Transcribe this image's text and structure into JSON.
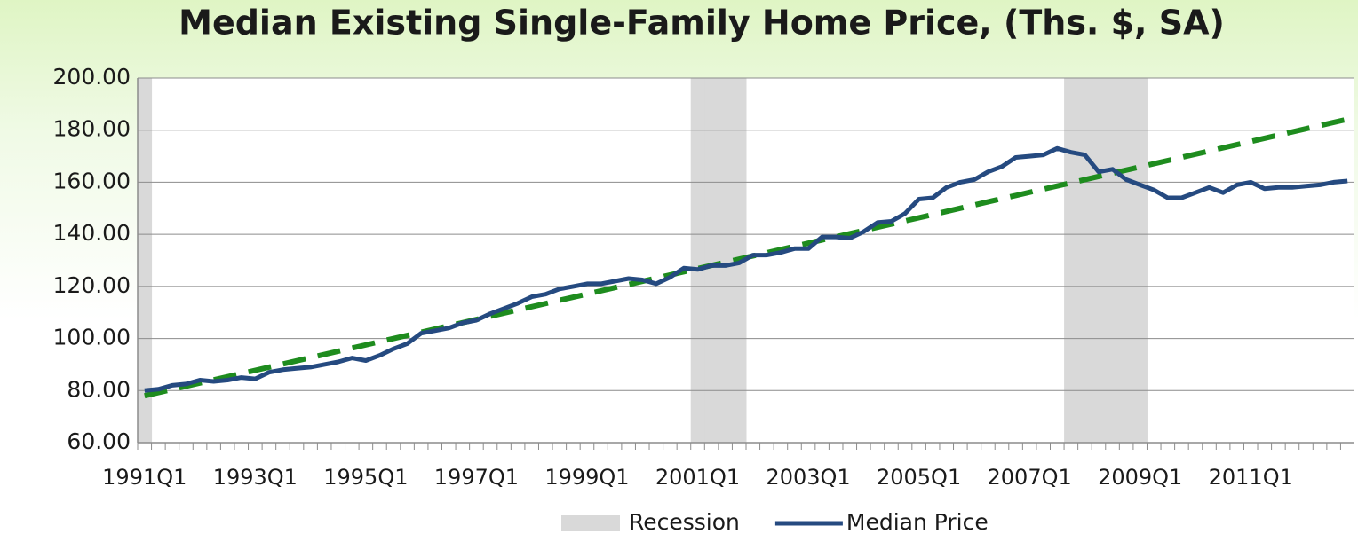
{
  "chart_data": {
    "type": "line",
    "title": "Median Existing Single-Family Home Price, (Ths. $, SA)",
    "categories": [
      "1991Q1",
      null,
      null,
      null,
      null,
      null,
      null,
      null,
      "1993Q1",
      null,
      null,
      null,
      null,
      null,
      null,
      null,
      "1995Q1",
      null,
      null,
      null,
      null,
      null,
      null,
      null,
      "1997Q1",
      null,
      null,
      null,
      null,
      null,
      null,
      null,
      "1999Q1",
      null,
      null,
      null,
      null,
      null,
      null,
      null,
      "2001Q1",
      null,
      null,
      null,
      null,
      null,
      null,
      null,
      "2003Q1",
      null,
      null,
      null,
      null,
      null,
      null,
      null,
      "2005Q1",
      null,
      null,
      null,
      null,
      null,
      null,
      null,
      "2007Q1",
      null,
      null,
      null,
      null,
      null,
      null,
      null,
      "2009Q1",
      null,
      null,
      null,
      null,
      null,
      null,
      null,
      "2011Q1",
      null,
      null,
      null,
      null,
      null,
      null,
      null
    ],
    "series": [
      {
        "name": "Recession",
        "type": "bar",
        "color": "#d9d9d9",
        "values": [
          200,
          null,
          null,
          null,
          null,
          null,
          null,
          null,
          null,
          null,
          null,
          null,
          null,
          null,
          null,
          null,
          null,
          null,
          null,
          null,
          null,
          null,
          null,
          null,
          null,
          null,
          null,
          null,
          null,
          null,
          null,
          null,
          null,
          null,
          null,
          null,
          null,
          null,
          null,
          null,
          200,
          200,
          200,
          200,
          null,
          null,
          null,
          null,
          null,
          null,
          null,
          null,
          null,
          null,
          null,
          null,
          null,
          null,
          null,
          null,
          null,
          null,
          null,
          null,
          null,
          null,
          null,
          200,
          200,
          200,
          200,
          200,
          200,
          null,
          null,
          null,
          null,
          null,
          null,
          null,
          null,
          null,
          null,
          null,
          null,
          null,
          null,
          null
        ]
      },
      {
        "name": "Median Price",
        "type": "line",
        "color": "#254a80",
        "values": [
          80,
          80.5,
          82,
          82.5,
          84,
          83.5,
          84,
          85,
          84.5,
          87,
          88,
          88.5,
          89,
          90,
          91,
          92.5,
          91.5,
          93.5,
          96,
          98,
          102,
          103,
          104,
          106,
          107,
          109.5,
          111.5,
          113.5,
          116,
          117,
          119,
          120,
          121,
          121,
          122,
          123,
          122.5,
          121,
          123.5,
          127,
          126.5,
          128,
          128,
          129,
          132,
          132,
          133,
          134.5,
          134.5,
          139,
          139,
          138.5,
          141,
          144.5,
          145,
          148,
          153.5,
          154,
          158,
          160,
          161,
          164,
          166,
          169.5,
          170,
          170.5,
          173,
          171.5,
          170.5,
          164,
          165,
          161,
          159,
          157,
          154,
          154,
          156,
          158,
          156,
          159,
          160,
          157.5,
          158,
          158,
          158.5,
          159,
          160,
          160.5
        ]
      }
    ],
    "trendline": {
      "color": "#1e8c1e",
      "values": [
        78,
        184.2
      ]
    },
    "ylim": [
      60,
      200
    ],
    "yticks": [
      {
        "value": 60,
        "label": "60.00"
      },
      {
        "value": 80,
        "label": "80.00"
      },
      {
        "value": 100,
        "label": "100.00"
      },
      {
        "value": 120,
        "label": "120.00"
      },
      {
        "value": 140,
        "label": "140.00"
      },
      {
        "value": 160,
        "label": "160.00"
      },
      {
        "value": 180,
        "label": "180.00"
      },
      {
        "value": 200,
        "label": "200.00"
      }
    ],
    "grid": true,
    "legend": "bottom"
  }
}
